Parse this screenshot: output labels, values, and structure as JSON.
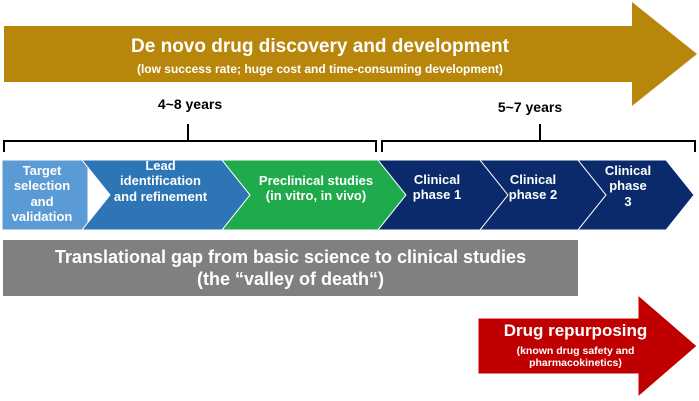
{
  "top_arrow": {
    "title": "De novo drug discovery and development",
    "subtitle": "(low success rate; huge cost and time-consuming development)",
    "color": "#B8860B"
  },
  "spans": [
    {
      "label": "4~8 years"
    },
    {
      "label": "5~7 years"
    }
  ],
  "stages": [
    {
      "label": "Target selection and validation",
      "color": "#5B9BD5"
    },
    {
      "label": "Lead identification and refinement",
      "color": "#2E75B6"
    },
    {
      "label": "Preclinical studies (in vitro, in vivo)",
      "color": "#1FAA4B"
    },
    {
      "label": "Clinical phase 1",
      "color": "#0B2A6B"
    },
    {
      "label": "Clinical phase 2",
      "color": "#0B2A6B"
    },
    {
      "label": "Clinical phase 3",
      "color": "#0B2A6B"
    }
  ],
  "stage_lines": [
    [
      "Target",
      "selection and",
      "validation"
    ],
    [
      "Lead",
      "identification",
      "and refinement"
    ],
    [
      "Preclinical studies",
      "(in vitro, in vivo)"
    ],
    [
      "Clinical",
      "phase 1"
    ],
    [
      "Clinical",
      "phase 2"
    ],
    [
      "Clinical",
      "phase",
      "3"
    ]
  ],
  "gap_banner": {
    "line1": "Translational gap from basic science to clinical studies",
    "line2": "(the “valley of death“)",
    "color": "#808080"
  },
  "repurposing": {
    "title": "Drug repurposing",
    "subtitle_line1": "(known drug safety and",
    "subtitle_line2": "pharmacokinetics)",
    "color": "#C00000"
  }
}
